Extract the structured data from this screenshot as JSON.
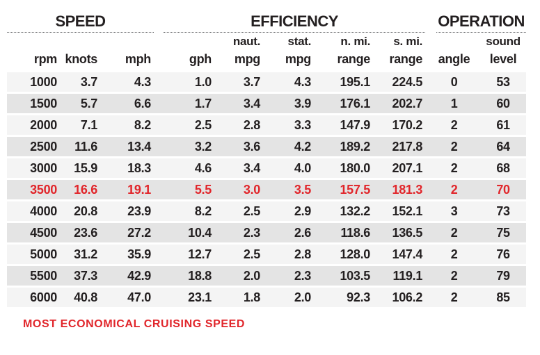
{
  "table": {
    "groups": [
      {
        "label": "SPEED",
        "span": 3
      },
      {
        "label": "EFFICIENCY",
        "span": 5
      },
      {
        "label": "OPERATION",
        "span": 2
      }
    ],
    "subheaders": [
      "",
      "",
      "",
      "",
      "naut.",
      "stat.",
      "n. mi.",
      "s. mi.",
      "",
      "sound"
    ],
    "columns": [
      "rpm",
      "knots",
      "mph",
      "gph",
      "mpg",
      "mpg",
      "range",
      "range",
      "angle",
      "level"
    ],
    "rows": [
      {
        "highlight": false,
        "values": [
          "1000",
          "3.7",
          "4.3",
          "1.0",
          "3.7",
          "4.3",
          "195.1",
          "224.5",
          "0",
          "53"
        ]
      },
      {
        "highlight": false,
        "values": [
          "1500",
          "5.7",
          "6.6",
          "1.7",
          "3.4",
          "3.9",
          "176.1",
          "202.7",
          "1",
          "60"
        ]
      },
      {
        "highlight": false,
        "values": [
          "2000",
          "7.1",
          "8.2",
          "2.5",
          "2.8",
          "3.3",
          "147.9",
          "170.2",
          "2",
          "61"
        ]
      },
      {
        "highlight": false,
        "values": [
          "2500",
          "11.6",
          "13.4",
          "3.2",
          "3.6",
          "4.2",
          "189.2",
          "217.8",
          "2",
          "64"
        ]
      },
      {
        "highlight": false,
        "values": [
          "3000",
          "15.9",
          "18.3",
          "4.6",
          "3.4",
          "4.0",
          "180.0",
          "207.1",
          "2",
          "68"
        ]
      },
      {
        "highlight": true,
        "values": [
          "3500",
          "16.6",
          "19.1",
          "5.5",
          "3.0",
          "3.5",
          "157.5",
          "181.3",
          "2",
          "70"
        ]
      },
      {
        "highlight": false,
        "values": [
          "4000",
          "20.8",
          "23.9",
          "8.2",
          "2.5",
          "2.9",
          "132.2",
          "152.1",
          "3",
          "73"
        ]
      },
      {
        "highlight": false,
        "values": [
          "4500",
          "23.6",
          "27.2",
          "10.4",
          "2.3",
          "2.6",
          "118.6",
          "136.5",
          "2",
          "75"
        ]
      },
      {
        "highlight": false,
        "values": [
          "5000",
          "31.2",
          "35.9",
          "12.7",
          "2.5",
          "2.8",
          "128.0",
          "147.4",
          "2",
          "76"
        ]
      },
      {
        "highlight": false,
        "values": [
          "5500",
          "37.3",
          "42.9",
          "18.8",
          "2.0",
          "2.3",
          "103.5",
          "119.1",
          "2",
          "79"
        ]
      },
      {
        "highlight": false,
        "values": [
          "6000",
          "40.8",
          "47.0",
          "23.1",
          "1.8",
          "2.0",
          "92.3",
          "106.2",
          "2",
          "85"
        ]
      }
    ],
    "footnote": "MOST ECONOMICAL CRUISING SPEED",
    "colors": {
      "highlight_red": "#e1262b",
      "text": "#231f20",
      "row_light": "#f4f4f4",
      "row_dark": "#e4e4e4"
    }
  }
}
